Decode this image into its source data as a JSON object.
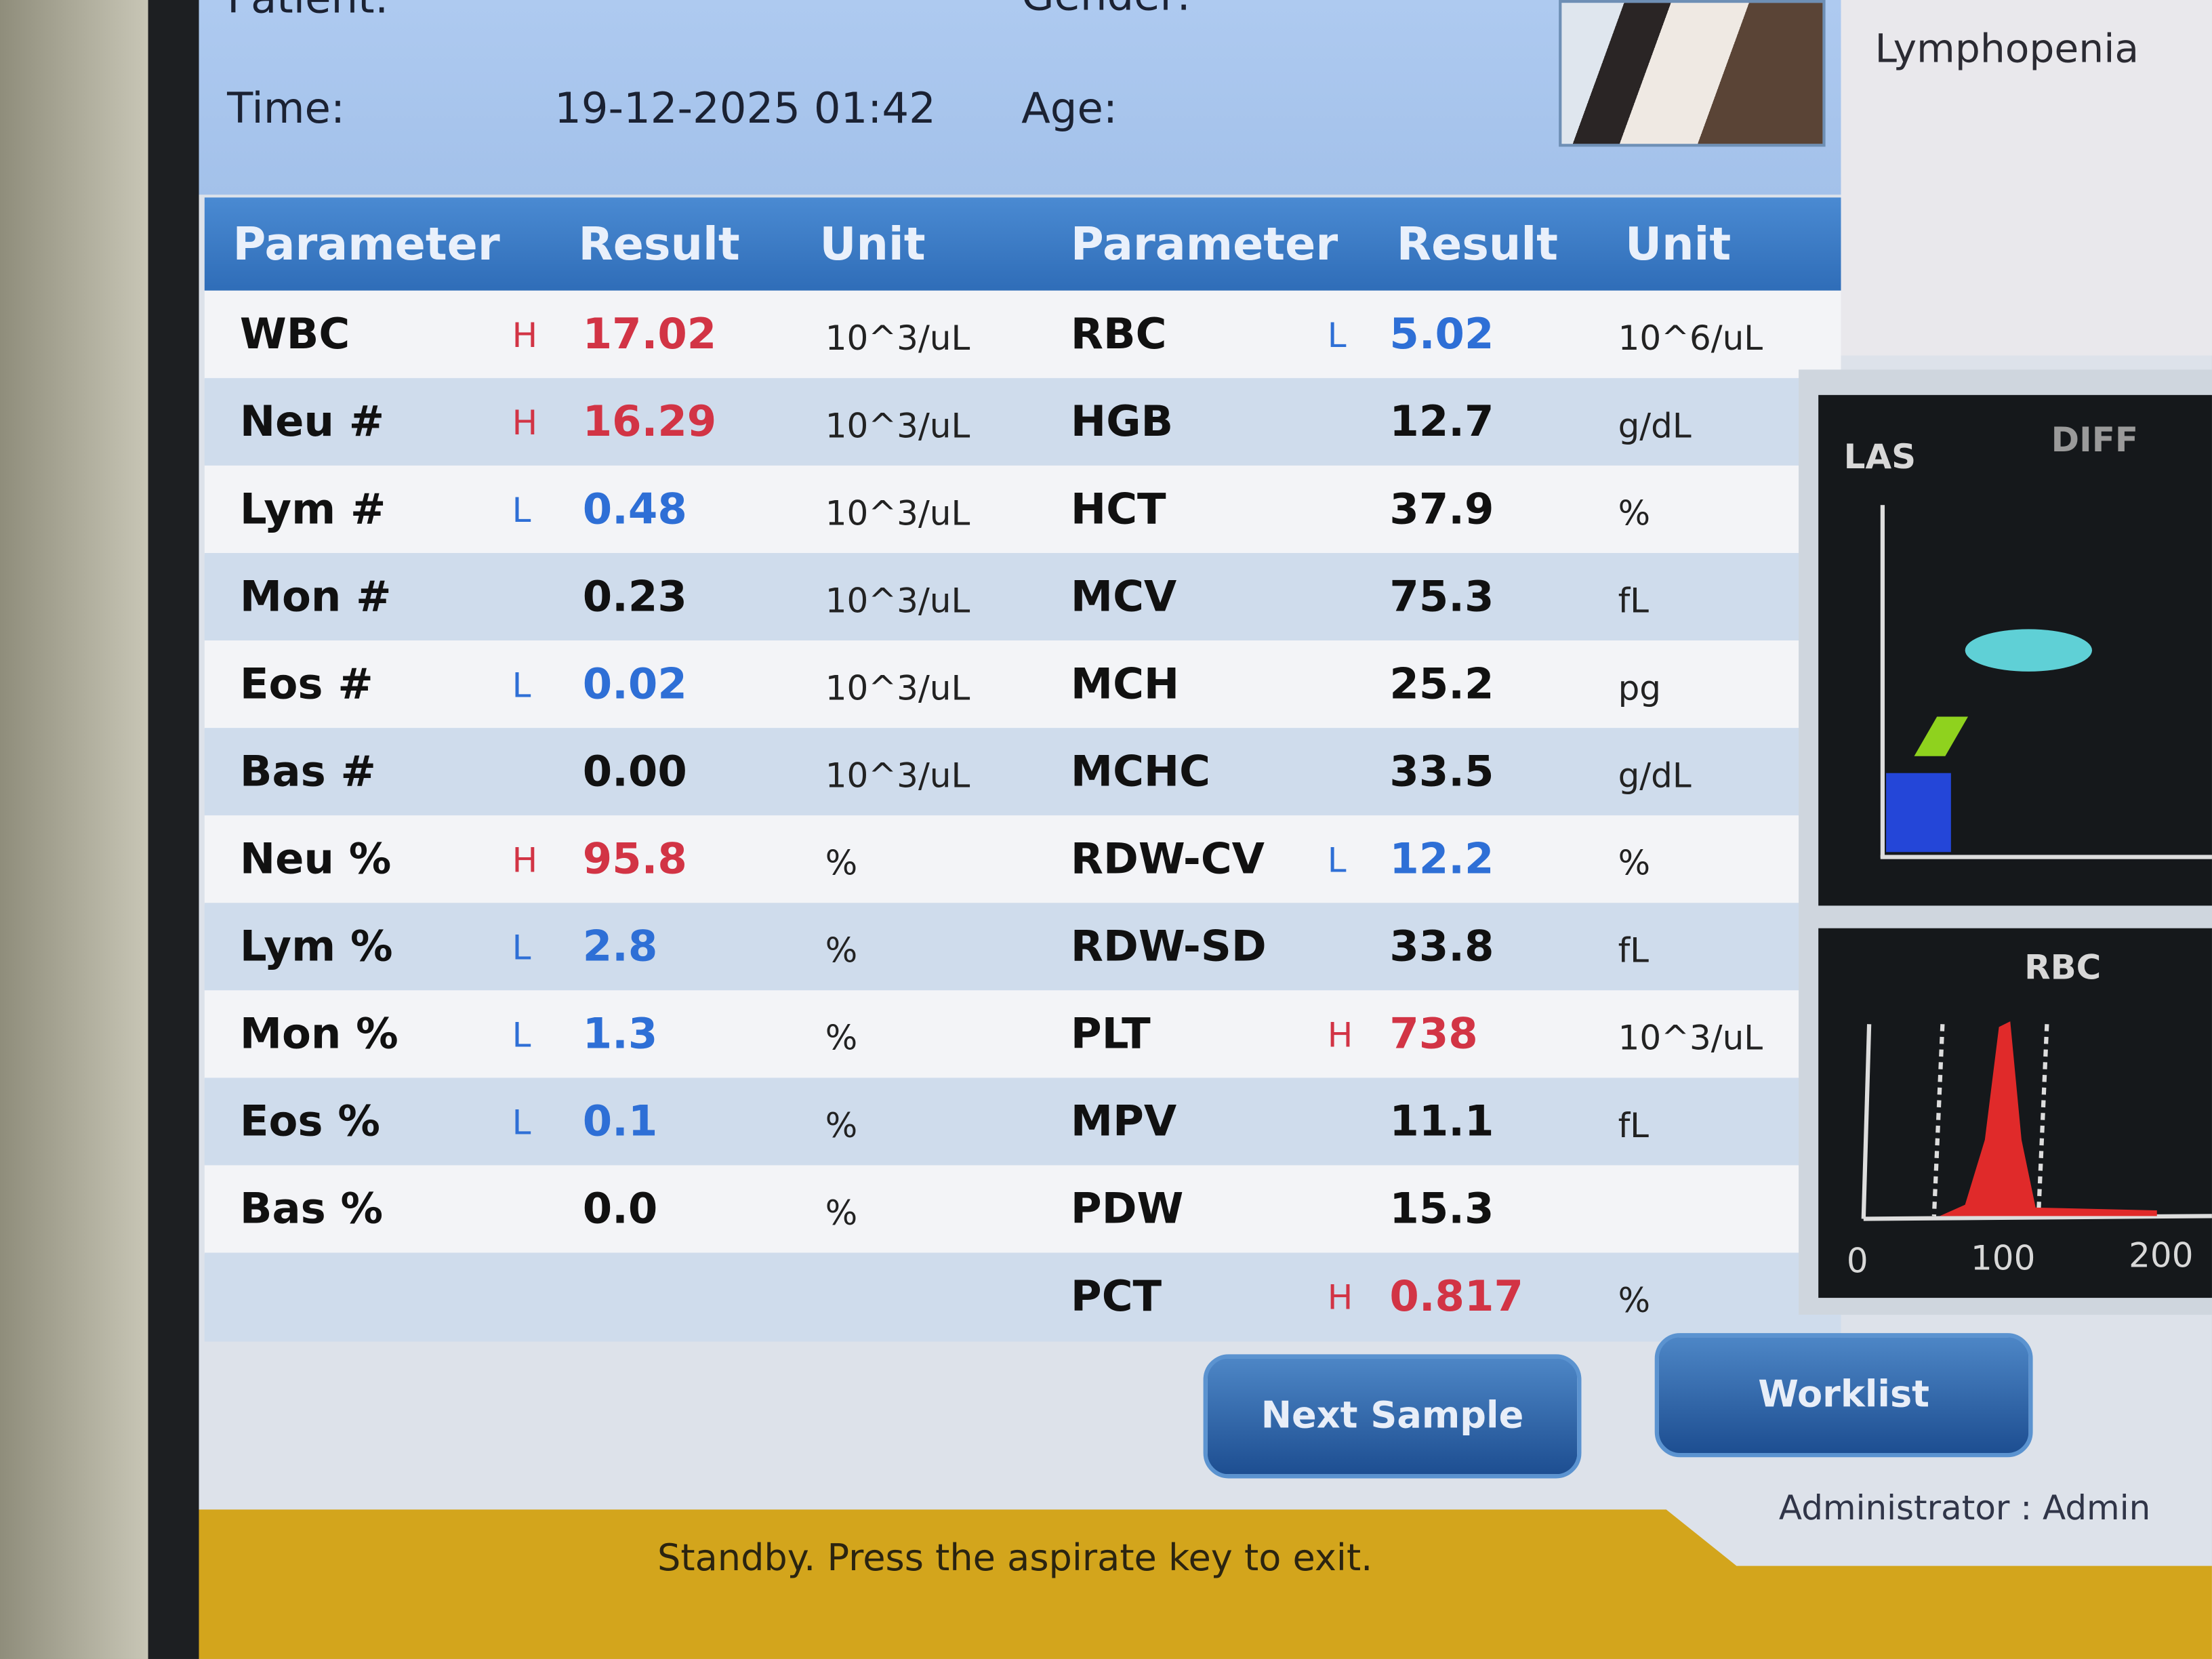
{
  "header": {
    "patient_label": "Patient:",
    "gender_label": "Gender:",
    "time_label": "Time:",
    "time_value": "19-12-2025 01:42",
    "age_label": "Age:"
  },
  "flags": [
    "Lymphopenia"
  ],
  "table": {
    "headers": [
      "Parameter",
      "Result",
      "Unit",
      "Parameter",
      "Result",
      "Unit"
    ],
    "left": [
      {
        "name": "WBC",
        "flag": "H",
        "result": "17.02",
        "unit": "10^3/uL"
      },
      {
        "name": "Neu #",
        "flag": "H",
        "result": "16.29",
        "unit": "10^3/uL"
      },
      {
        "name": "Lym #",
        "flag": "L",
        "result": "0.48",
        "unit": "10^3/uL"
      },
      {
        "name": "Mon #",
        "flag": "",
        "result": "0.23",
        "unit": "10^3/uL"
      },
      {
        "name": "Eos #",
        "flag": "L",
        "result": "0.02",
        "unit": "10^3/uL"
      },
      {
        "name": "Bas #",
        "flag": "",
        "result": "0.00",
        "unit": "10^3/uL"
      },
      {
        "name": "Neu %",
        "flag": "H",
        "result": "95.8",
        "unit": "%"
      },
      {
        "name": "Lym %",
        "flag": "L",
        "result": "2.8",
        "unit": "%"
      },
      {
        "name": "Mon %",
        "flag": "L",
        "result": "1.3",
        "unit": "%"
      },
      {
        "name": "Eos %",
        "flag": "L",
        "result": "0.1",
        "unit": "%"
      },
      {
        "name": "Bas %",
        "flag": "",
        "result": "0.0",
        "unit": "%"
      }
    ],
    "right": [
      {
        "name": "RBC",
        "flag": "L",
        "result": "5.02",
        "unit": "10^6/uL"
      },
      {
        "name": "HGB",
        "flag": "",
        "result": "12.7",
        "unit": "g/dL"
      },
      {
        "name": "HCT",
        "flag": "",
        "result": "37.9",
        "unit": "%"
      },
      {
        "name": "MCV",
        "flag": "",
        "result": "75.3",
        "unit": "fL"
      },
      {
        "name": "MCH",
        "flag": "",
        "result": "25.2",
        "unit": "pg"
      },
      {
        "name": "MCHC",
        "flag": "",
        "result": "33.5",
        "unit": "g/dL"
      },
      {
        "name": "RDW-CV",
        "flag": "L",
        "result": "12.2",
        "unit": "%"
      },
      {
        "name": "RDW-SD",
        "flag": "",
        "result": "33.8",
        "unit": "fL"
      },
      {
        "name": "PLT",
        "flag": "H",
        "result": "738",
        "unit": "10^3/uL"
      },
      {
        "name": "MPV",
        "flag": "",
        "result": "11.1",
        "unit": "fL"
      },
      {
        "name": "PDW",
        "flag": "",
        "result": "15.3",
        "unit": ""
      },
      {
        "name": "PCT",
        "flag": "H",
        "result": "0.817",
        "unit": "%"
      }
    ]
  },
  "charts": {
    "diff": {
      "title": "DIFF",
      "y_label": "LAS",
      "clusters": [
        {
          "color": "#5fd0d6"
        },
        {
          "color": "#8fd21e"
        },
        {
          "color": "#2446d8"
        }
      ]
    },
    "rbc": {
      "title": "RBC",
      "ticks": [
        "0",
        "100",
        "200"
      ],
      "fill_color": "#e02a2a"
    }
  },
  "buttons": {
    "next_sample": "Next Sample",
    "worklist": "Worklist"
  },
  "status": {
    "message": "Standby. Press the aspirate key to exit.",
    "user": "Administrator : Admin"
  },
  "colors": {
    "high": "#d23445",
    "low": "#2e6fd6",
    "header": "#2f6db8",
    "status_bar": "#d3a51c"
  }
}
